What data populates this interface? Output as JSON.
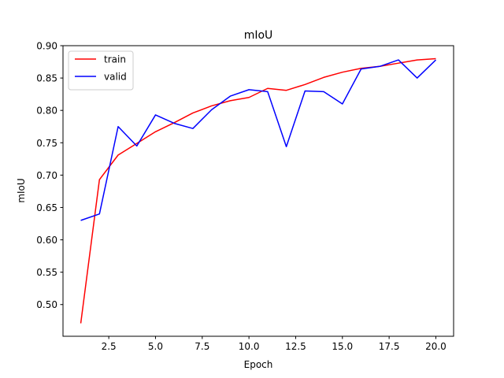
{
  "chart_data": {
    "type": "line",
    "title": "mIoU",
    "xlabel": "Epoch",
    "ylabel": "mIoU",
    "x": [
      1,
      2,
      3,
      4,
      5,
      6,
      7,
      8,
      9,
      10,
      11,
      12,
      13,
      14,
      15,
      16,
      17,
      18,
      19,
      20
    ],
    "series": [
      {
        "name": "train",
        "color": "#ff0000",
        "values": [
          0.471,
          0.693,
          0.731,
          0.749,
          0.767,
          0.781,
          0.796,
          0.807,
          0.815,
          0.82,
          0.834,
          0.831,
          0.84,
          0.851,
          0.859,
          0.865,
          0.868,
          0.873,
          0.878,
          0.88
        ]
      },
      {
        "name": "valid",
        "color": "#0000ff",
        "values": [
          0.63,
          0.64,
          0.775,
          0.745,
          0.793,
          0.78,
          0.772,
          0.801,
          0.822,
          0.832,
          0.829,
          0.744,
          0.83,
          0.829,
          0.81,
          0.864,
          0.868,
          0.878,
          0.85,
          0.878
        ]
      }
    ],
    "xlim": [
      0.05,
      20.95
    ],
    "ylim": [
      0.451,
      0.9
    ],
    "xticks": [
      2.5,
      5.0,
      7.5,
      10.0,
      12.5,
      15.0,
      17.5,
      20.0
    ],
    "xtick_labels": [
      "2.5",
      "5.0",
      "7.5",
      "10.0",
      "12.5",
      "15.0",
      "17.5",
      "20.0"
    ],
    "yticks": [
      0.5,
      0.55,
      0.6,
      0.65,
      0.7,
      0.75,
      0.8,
      0.85,
      0.9
    ],
    "ytick_labels": [
      "0.50",
      "0.55",
      "0.60",
      "0.65",
      "0.70",
      "0.75",
      "0.80",
      "0.85",
      "0.90"
    ],
    "grid": false,
    "legend_position": "top-left"
  }
}
